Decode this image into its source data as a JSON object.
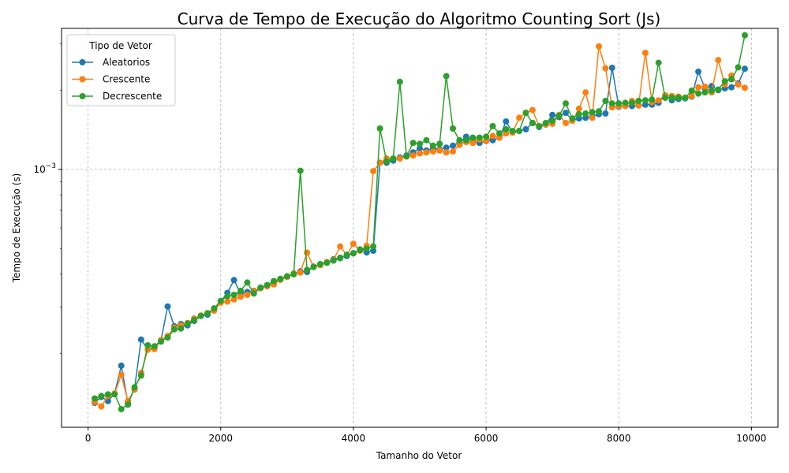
{
  "chart_data": {
    "type": "line",
    "title": "Curva de Tempo de Execução do Algoritmo Counting Sort (Js)",
    "xlabel": "Tamanho do Vetor",
    "ylabel": "Tempo de Execução (s)",
    "yscale": "log",
    "xlim": [
      -400,
      10400
    ],
    "ylim": [
      0.000105,
      0.00343
    ],
    "x_ticks": [
      0,
      2000,
      4000,
      6000,
      8000,
      10000
    ],
    "y_ticks": [
      {
        "value": 0.001,
        "base": "10",
        "exponent": "−3"
      }
    ],
    "grid": true,
    "legend": {
      "title": "Tipo de Vetor",
      "position": "top-left"
    },
    "x": [
      100,
      200,
      300,
      400,
      500,
      600,
      700,
      800,
      900,
      1000,
      1100,
      1200,
      1300,
      1400,
      1500,
      1600,
      1700,
      1800,
      1900,
      2000,
      2100,
      2200,
      2300,
      2400,
      2500,
      2600,
      2700,
      2800,
      2900,
      3000,
      3100,
      3200,
      3300,
      3400,
      3500,
      3600,
      3700,
      3800,
      3900,
      4000,
      4100,
      4200,
      4300,
      4400,
      4500,
      4600,
      4700,
      4800,
      4900,
      5000,
      5100,
      5200,
      5300,
      5400,
      5500,
      5600,
      5700,
      5800,
      5900,
      6000,
      6100,
      6200,
      6300,
      6400,
      6500,
      6600,
      6700,
      6800,
      6900,
      7000,
      7100,
      7200,
      7300,
      7400,
      7500,
      7600,
      7700,
      7800,
      7900,
      8000,
      8100,
      8200,
      8300,
      8400,
      8500,
      8600,
      8700,
      8800,
      8900,
      9000,
      9100,
      9200,
      9300,
      9400,
      9500,
      9600,
      9700,
      9800,
      9900
    ],
    "series": [
      {
        "name": "Aleatorios",
        "color": "#1f77b4",
        "values": [
          0.00013,
          0.000137,
          0.000132,
          0.000141,
          0.00018,
          0.00013,
          0.000147,
          0.000226,
          0.000207,
          0.000212,
          0.000225,
          0.000302,
          0.000254,
          0.000259,
          0.000256,
          0.000266,
          0.000278,
          0.000281,
          0.000294,
          0.000315,
          0.00034,
          0.00038,
          0.000338,
          0.000343,
          0.000346,
          0.000354,
          0.000362,
          0.000375,
          0.000384,
          0.000391,
          0.000401,
          0.00041,
          0.000408,
          0.000428,
          0.000436,
          0.000444,
          0.000456,
          0.000462,
          0.000469,
          0.000481,
          0.000497,
          0.000484,
          0.000491,
          0.00106,
          0.00106,
          0.00108,
          0.00111,
          0.00113,
          0.00116,
          0.0012,
          0.00118,
          0.0012,
          0.00119,
          0.00121,
          0.00123,
          0.00127,
          0.00133,
          0.00129,
          0.00126,
          0.00128,
          0.00129,
          0.00132,
          0.00152,
          0.00138,
          0.0014,
          0.00142,
          0.0015,
          0.00145,
          0.00148,
          0.00161,
          0.00158,
          0.00164,
          0.00154,
          0.00156,
          0.00157,
          0.00159,
          0.00162,
          0.00163,
          0.00243,
          0.00173,
          0.00174,
          0.00174,
          0.00175,
          0.00176,
          0.00176,
          0.00179,
          0.00191,
          0.00183,
          0.00185,
          0.00186,
          0.00189,
          0.00235,
          0.00203,
          0.00207,
          0.002,
          0.00203,
          0.00205,
          0.00212,
          0.00241
        ]
      },
      {
        "name": "Crescente",
        "color": "#ff7f0e",
        "values": [
          0.000131,
          0.000126,
          0.000138,
          0.000141,
          0.000166,
          0.000132,
          0.000146,
          0.000169,
          0.000207,
          0.000208,
          0.000225,
          0.000233,
          0.000251,
          0.000256,
          0.000261,
          0.000272,
          0.000279,
          0.000285,
          0.000291,
          0.000312,
          0.000315,
          0.000321,
          0.000329,
          0.000334,
          0.000345,
          0.000354,
          0.00036,
          0.000366,
          0.000381,
          0.000391,
          0.000403,
          0.000406,
          0.000483,
          0.000427,
          0.000433,
          0.000445,
          0.000453,
          0.00051,
          0.000474,
          0.000522,
          0.000491,
          0.000513,
          0.000985,
          0.00106,
          0.0011,
          0.0011,
          0.0011,
          0.00112,
          0.00113,
          0.00115,
          0.00116,
          0.00117,
          0.00118,
          0.00116,
          0.00117,
          0.00124,
          0.00127,
          0.00126,
          0.0013,
          0.00128,
          0.00134,
          0.00132,
          0.00137,
          0.00138,
          0.00157,
          0.00164,
          0.00168,
          0.00146,
          0.00148,
          0.00149,
          0.00161,
          0.0015,
          0.00153,
          0.0017,
          0.00196,
          0.00157,
          0.00293,
          0.00242,
          0.00172,
          0.00174,
          0.00174,
          0.00182,
          0.00175,
          0.00277,
          0.0018,
          0.00183,
          0.00191,
          0.0019,
          0.00189,
          0.00187,
          0.0019,
          0.00205,
          0.00206,
          0.00196,
          0.0026,
          0.0021,
          0.00227,
          0.0021,
          0.00204
        ]
      },
      {
        "name": "Decrescente",
        "color": "#2ca02c",
        "values": [
          0.000135,
          0.000138,
          0.00014,
          0.00014,
          0.000123,
          0.000128,
          0.000149,
          0.000165,
          0.000215,
          0.000213,
          0.000222,
          0.00023,
          0.000247,
          0.000249,
          0.00026,
          0.000268,
          0.000278,
          0.000284,
          0.000297,
          0.000317,
          0.00033,
          0.000334,
          0.000346,
          0.000372,
          0.000338,
          0.000356,
          0.000364,
          0.000377,
          0.000384,
          0.000393,
          0.0004,
          0.000988,
          0.000415,
          0.000426,
          0.000437,
          0.000442,
          0.000451,
          0.00046,
          0.000474,
          0.00048,
          0.000495,
          0.0005,
          0.00051,
          0.00143,
          0.00107,
          0.0011,
          0.00215,
          0.00112,
          0.00126,
          0.00125,
          0.00129,
          0.00123,
          0.00125,
          0.00226,
          0.00143,
          0.00129,
          0.00129,
          0.00132,
          0.00132,
          0.00133,
          0.00146,
          0.00137,
          0.00142,
          0.0014,
          0.0014,
          0.00164,
          0.0015,
          0.00146,
          0.0015,
          0.00153,
          0.0016,
          0.00178,
          0.00156,
          0.00162,
          0.00163,
          0.00165,
          0.00166,
          0.00182,
          0.00178,
          0.00178,
          0.00179,
          0.00179,
          0.00182,
          0.00183,
          0.00184,
          0.00254,
          0.00187,
          0.00187,
          0.00187,
          0.00187,
          0.00199,
          0.00194,
          0.00196,
          0.00199,
          0.00201,
          0.00216,
          0.0022,
          0.00244,
          0.00323
        ]
      }
    ]
  }
}
